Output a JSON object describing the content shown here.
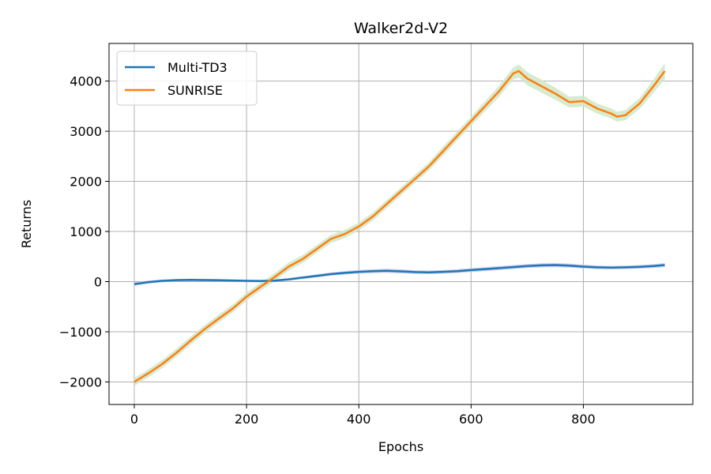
{
  "chart_data": {
    "type": "line",
    "title": "Walker2d-V2",
    "xlabel": "Epochs",
    "ylabel": "Returns",
    "xlim": [
      -45,
      995
    ],
    "ylim": [
      -2450,
      4750
    ],
    "xticks": [
      0,
      200,
      400,
      600,
      800
    ],
    "yticks": [
      -2000,
      -1000,
      0,
      1000,
      2000,
      3000,
      4000
    ],
    "xtick_labels": [
      "0",
      "200",
      "400",
      "600",
      "800"
    ],
    "ytick_labels": [
      "−2000",
      "−1000",
      "0",
      "1000",
      "2000",
      "3000",
      "4000"
    ],
    "grid": true,
    "legend_position": "top-left",
    "series": [
      {
        "name": "Multi-TD3",
        "color": "#1f77b4",
        "band_color": "#c7c9f0",
        "x": [
          0,
          25,
          50,
          75,
          100,
          125,
          150,
          175,
          200,
          225,
          250,
          275,
          300,
          325,
          350,
          375,
          400,
          425,
          450,
          475,
          500,
          525,
          550,
          575,
          600,
          625,
          650,
          675,
          700,
          725,
          750,
          775,
          800,
          825,
          850,
          875,
          900,
          925,
          945
        ],
        "y": [
          -50,
          -10,
          15,
          30,
          35,
          32,
          28,
          22,
          15,
          12,
          20,
          45,
          80,
          115,
          150,
          175,
          195,
          210,
          215,
          205,
          190,
          185,
          195,
          210,
          230,
          250,
          270,
          290,
          310,
          325,
          330,
          320,
          300,
          285,
          280,
          285,
          295,
          310,
          330
        ],
        "band": [
          35,
          30,
          28,
          25,
          25,
          25,
          25,
          25,
          25,
          25,
          25,
          25,
          28,
          30,
          32,
          34,
          36,
          38,
          40,
          40,
          38,
          36,
          36,
          38,
          40,
          40,
          40,
          40,
          40,
          40,
          40,
          40,
          38,
          36,
          34,
          34,
          36,
          38,
          40
        ]
      },
      {
        "name": "SUNRISE",
        "color": "#ff7f0e",
        "band_color": "#cfe8c8",
        "x": [
          0,
          25,
          50,
          75,
          100,
          125,
          150,
          175,
          200,
          225,
          250,
          275,
          300,
          325,
          350,
          375,
          400,
          425,
          450,
          475,
          500,
          525,
          550,
          575,
          600,
          625,
          650,
          675,
          685,
          700,
          725,
          750,
          775,
          800,
          825,
          850,
          860,
          875,
          900,
          925,
          945
        ],
        "y": [
          -2000,
          -1830,
          -1640,
          -1420,
          -1180,
          -950,
          -740,
          -540,
          -300,
          -100,
          90,
          300,
          450,
          650,
          850,
          950,
          1100,
          1300,
          1550,
          1800,
          2050,
          2300,
          2600,
          2900,
          3200,
          3500,
          3800,
          4150,
          4200,
          4050,
          3900,
          3750,
          3580,
          3600,
          3450,
          3350,
          3290,
          3320,
          3550,
          3900,
          4200
        ],
        "band": [
          80,
          80,
          80,
          80,
          80,
          80,
          80,
          80,
          80,
          80,
          80,
          80,
          80,
          80,
          80,
          80,
          80,
          80,
          80,
          80,
          80,
          80,
          90,
          90,
          90,
          100,
          110,
          120,
          130,
          130,
          130,
          120,
          110,
          110,
          100,
          100,
          100,
          100,
          110,
          130,
          160
        ]
      }
    ]
  }
}
